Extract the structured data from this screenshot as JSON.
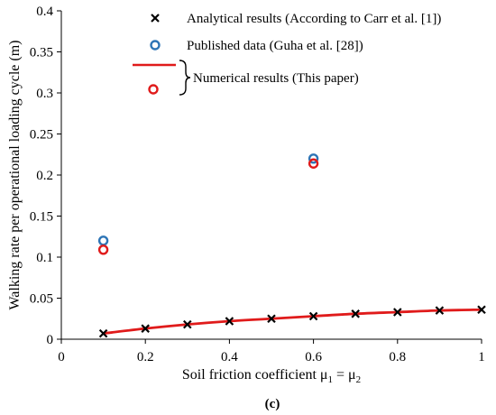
{
  "chart_data": {
    "type": "scatter",
    "xlabel": "Soil friction coefficient μ",
    "xlabel_sub1": "1",
    "xlabel_eq": " = μ",
    "xlabel_sub2": "2",
    "ylabel": "Walking rate per operational loading cycle (m)",
    "xlim": [
      0,
      1
    ],
    "ylim": [
      0,
      0.4
    ],
    "x_ticks": [
      "0",
      "0.2",
      "0.4",
      "0.6",
      "0.8",
      "1"
    ],
    "y_ticks": [
      "0",
      "0.05",
      "0.1",
      "0.15",
      "0.2",
      "0.25",
      "0.3",
      "0.35",
      "0.4"
    ],
    "grid": false,
    "legend_position": "top-right",
    "caption": "(c)",
    "series": [
      {
        "name": "Analytical results (According to Carr et al. [1])",
        "marker": "x",
        "color": "#000000",
        "x": [
          0.1,
          0.2,
          0.3,
          0.4,
          0.5,
          0.6,
          0.7,
          0.8,
          0.9,
          1.0
        ],
        "y": [
          0.007,
          0.013,
          0.018,
          0.022,
          0.025,
          0.028,
          0.031,
          0.033,
          0.035,
          0.036
        ]
      },
      {
        "name": "Published data (Guha et al. [28])",
        "marker": "circle-open",
        "color": "#2e75b6",
        "x": [
          0.1,
          0.6
        ],
        "y": [
          0.12,
          0.22
        ]
      },
      {
        "name": "Numerical results (This paper)",
        "marker": "line",
        "color": "#e01b1b",
        "x": [
          0.1,
          0.2,
          0.3,
          0.4,
          0.5,
          0.6,
          0.7,
          0.8,
          0.9,
          1.0
        ],
        "y": [
          0.007,
          0.013,
          0.018,
          0.022,
          0.025,
          0.028,
          0.031,
          0.033,
          0.035,
          0.036
        ]
      },
      {
        "name": "Numerical results (This paper)",
        "marker": "circle-open",
        "color": "#e01b1b",
        "x": [
          0.1,
          0.6
        ],
        "y": [
          0.109,
          0.214
        ]
      }
    ],
    "legend": {
      "analytical": "Analytical results (According to Carr et al. [1])",
      "published": "Published data (Guha et al. [28])",
      "numerical": "Numerical results (This paper)"
    }
  }
}
